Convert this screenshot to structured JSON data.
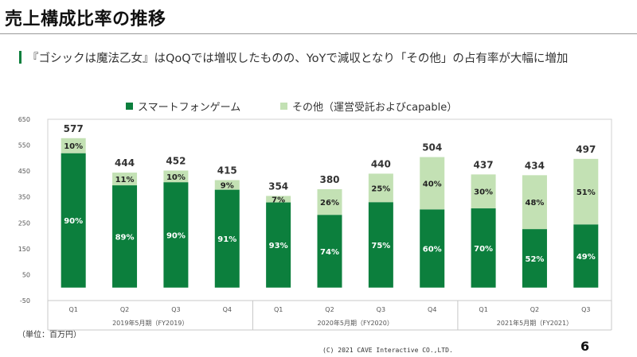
{
  "slide": {
    "title": "売上構成比率の推移",
    "subtitle": "『ゴシックは魔法乙女』はQoQでは増収したものの、YoYで減収となり「その他」の占有率が大幅に増加",
    "unit_note": "（単位：百万円）",
    "copyright": "(C) 2021 CAVE Interactive CO.,LTD.",
    "page_number": "6"
  },
  "colors": {
    "smartphone": "#0c7f3d",
    "other": "#c3e1b4",
    "accent": "#0c7f3d"
  },
  "chart_data": {
    "type": "bar",
    "stacked": true,
    "legend_position": "top",
    "legend": [
      "スマートフォンゲーム",
      "その他（運営受託およびcapable）"
    ],
    "categories": [
      "Q1",
      "Q2",
      "Q3",
      "Q4",
      "Q1",
      "Q2",
      "Q3",
      "Q4",
      "Q1",
      "Q2",
      "Q3"
    ],
    "groups": [
      {
        "label": "2019年5月期（FY2019）",
        "count": 4
      },
      {
        "label": "2020年5月期（FY2020）",
        "count": 4
      },
      {
        "label": "2021年5月期（FY2021）",
        "count": 3
      }
    ],
    "totals": [
      577,
      444,
      452,
      415,
      354,
      380,
      440,
      504,
      437,
      434,
      497
    ],
    "series": [
      {
        "name": "スマートフォンゲーム",
        "values": [
          519,
          395,
          407,
          378,
          329,
          281,
          330,
          302,
          306,
          226,
          244
        ],
        "labels": [
          "90%",
          "89%",
          "90%",
          "91%",
          "93%",
          "74%",
          "75%",
          "60%",
          "70%",
          "52%",
          "49%"
        ]
      },
      {
        "name": "その他（運営受託およびcapable）",
        "values": [
          58,
          49,
          45,
          37,
          25,
          99,
          110,
          202,
          131,
          208,
          253
        ],
        "labels": [
          "10%",
          "11%",
          "10%",
          "9%",
          "7%",
          "26%",
          "25%",
          "40%",
          "30%",
          "48%",
          "51%"
        ]
      }
    ],
    "yticks": [
      650,
      550,
      450,
      350,
      250,
      150,
      50,
      -50
    ],
    "ylim": [
      -50,
      650
    ],
    "grid": false
  }
}
